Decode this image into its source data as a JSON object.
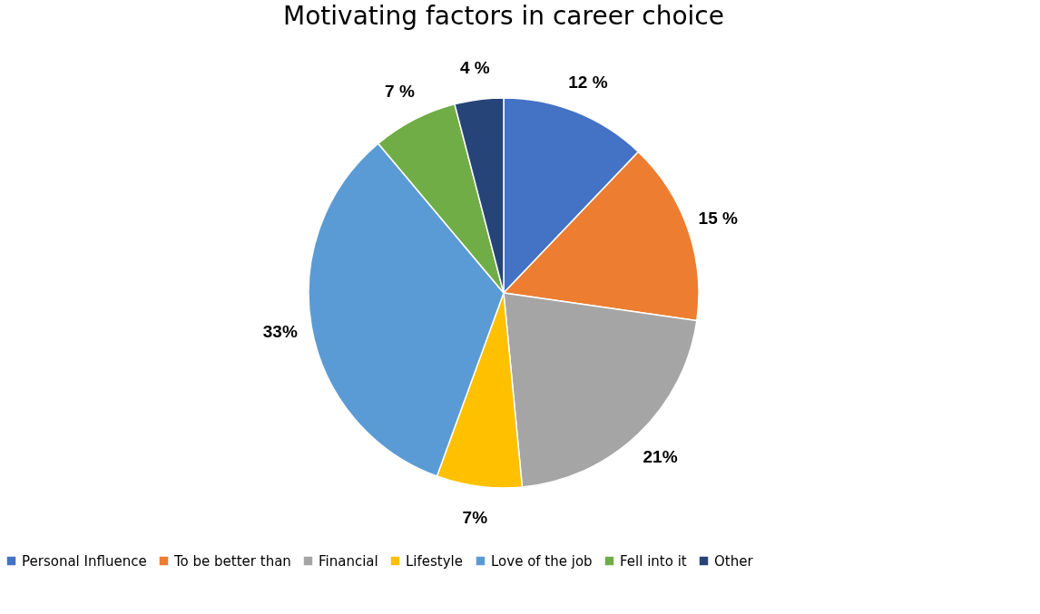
{
  "chart_data": {
    "type": "pie",
    "title": "Motivating factors in career choice",
    "categories": [
      "Personal Influence",
      "To be better than",
      "Financial",
      "Lifestyle",
      "Love of the job",
      "Fell into it",
      "Other"
    ],
    "values": [
      12,
      15,
      21,
      7,
      33,
      7,
      4
    ],
    "colors": [
      "#4472c4",
      "#ed7d31",
      "#a5a5a5",
      "#ffc000",
      "#5b9bd5",
      "#70ad47",
      "#264478"
    ],
    "value_labels": [
      "12 %",
      "15 %",
      "21%",
      "7%",
      "33%",
      "7 %",
      "4 %"
    ],
    "legend": "bottom"
  }
}
